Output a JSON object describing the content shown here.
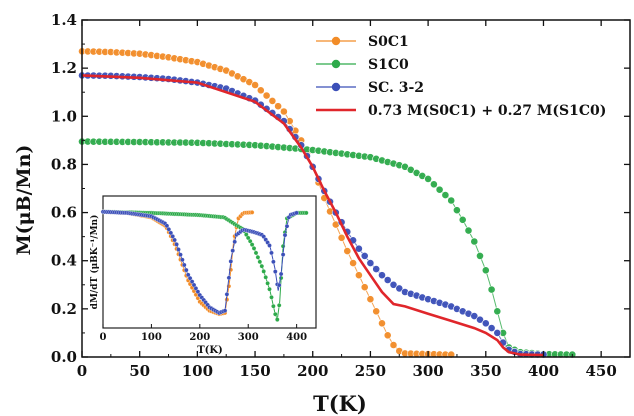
{
  "chart_data": {
    "type": "scatter",
    "xlabel": "T(K)",
    "ylabel": "M(μB/Mn)",
    "xlim": [
      0,
      475
    ],
    "ylim": [
      0,
      1.4
    ],
    "x_ticks": [
      "0",
      "50",
      "100",
      "150",
      "200",
      "250",
      "300",
      "350",
      "400",
      "450"
    ],
    "y_ticks": [
      "0.0",
      "0.2",
      "0.4",
      "0.6",
      "0.8",
      "1.0",
      "1.2",
      "1.4"
    ],
    "legend_position": "top-right",
    "colors": {
      "s0c1": "#F28C28",
      "s1c0": "#2DAA4A",
      "sc32": "#3B4FB8",
      "fit": "#E0262B"
    },
    "series": [
      {
        "name": "S0C1",
        "marker": "circle",
        "points": [
          [
            0,
            1.27
          ],
          [
            25,
            1.267
          ],
          [
            50,
            1.26
          ],
          [
            75,
            1.245
          ],
          [
            100,
            1.225
          ],
          [
            125,
            1.19
          ],
          [
            150,
            1.13
          ],
          [
            175,
            1.02
          ],
          [
            190,
            0.9
          ],
          [
            200,
            0.79
          ],
          [
            210,
            0.66
          ],
          [
            220,
            0.55
          ],
          [
            230,
            0.44
          ],
          [
            240,
            0.34
          ],
          [
            250,
            0.24
          ],
          [
            260,
            0.14
          ],
          [
            265,
            0.09
          ],
          [
            270,
            0.05
          ],
          [
            275,
            0.025
          ],
          [
            280,
            0.015
          ],
          [
            300,
            0.012
          ],
          [
            320,
            0.01
          ]
        ]
      },
      {
        "name": "S1C0",
        "marker": "circle",
        "points": [
          [
            0,
            0.895
          ],
          [
            50,
            0.893
          ],
          [
            100,
            0.89
          ],
          [
            150,
            0.88
          ],
          [
            200,
            0.86
          ],
          [
            250,
            0.83
          ],
          [
            280,
            0.79
          ],
          [
            300,
            0.74
          ],
          [
            320,
            0.65
          ],
          [
            330,
            0.57
          ],
          [
            340,
            0.48
          ],
          [
            350,
            0.36
          ],
          [
            355,
            0.28
          ],
          [
            360,
            0.19
          ],
          [
            365,
            0.1
          ],
          [
            370,
            0.04
          ],
          [
            380,
            0.02
          ],
          [
            400,
            0.012
          ],
          [
            425,
            0.01
          ]
        ]
      },
      {
        "name": "SC. 3-2",
        "marker": "circle",
        "points": [
          [
            0,
            1.17
          ],
          [
            25,
            1.168
          ],
          [
            50,
            1.163
          ],
          [
            75,
            1.155
          ],
          [
            100,
            1.14
          ],
          [
            125,
            1.115
          ],
          [
            150,
            1.065
          ],
          [
            175,
            0.98
          ],
          [
            190,
            0.88
          ],
          [
            200,
            0.79
          ],
          [
            210,
            0.69
          ],
          [
            220,
            0.6
          ],
          [
            230,
            0.52
          ],
          [
            240,
            0.45
          ],
          [
            250,
            0.39
          ],
          [
            260,
            0.34
          ],
          [
            270,
            0.3
          ],
          [
            280,
            0.27
          ],
          [
            300,
            0.24
          ],
          [
            320,
            0.21
          ],
          [
            340,
            0.17
          ],
          [
            350,
            0.14
          ],
          [
            360,
            0.1
          ],
          [
            365,
            0.06
          ],
          [
            370,
            0.03
          ],
          [
            380,
            0.012
          ],
          [
            400,
            0.01
          ]
        ]
      },
      {
        "name": "0.73 M(S0C1) + 0.27 M(S1C0)",
        "marker": "line",
        "points": [
          [
            0,
            1.17
          ],
          [
            50,
            1.16
          ],
          [
            100,
            1.14
          ],
          [
            150,
            1.06
          ],
          [
            175,
            0.97
          ],
          [
            190,
            0.87
          ],
          [
            200,
            0.79
          ],
          [
            210,
            0.69
          ],
          [
            220,
            0.6
          ],
          [
            230,
            0.5
          ],
          [
            240,
            0.41
          ],
          [
            250,
            0.34
          ],
          [
            260,
            0.27
          ],
          [
            270,
            0.22
          ],
          [
            280,
            0.21
          ],
          [
            300,
            0.18
          ],
          [
            320,
            0.15
          ],
          [
            340,
            0.12
          ],
          [
            350,
            0.1
          ],
          [
            360,
            0.07
          ],
          [
            365,
            0.04
          ],
          [
            370,
            0.02
          ],
          [
            380,
            0.01
          ],
          [
            400,
            0.008
          ]
        ]
      }
    ],
    "inset": {
      "ylabel": "dM/dT (μBK⁻¹/Mn)",
      "xlabel": "T(K)",
      "xlim": [
        0,
        440
      ],
      "x_ticks": [
        "0",
        "100",
        "200",
        "300",
        "400"
      ],
      "series": [
        {
          "name": "S0C1",
          "points": [
            [
              0,
              0.01
            ],
            [
              50,
              0.0
            ],
            [
              100,
              -0.04
            ],
            [
              130,
              -0.12
            ],
            [
              150,
              -0.3
            ],
            [
              175,
              -0.6
            ],
            [
              200,
              -0.8
            ],
            [
              220,
              -0.88
            ],
            [
              240,
              -0.91
            ],
            [
              252,
              -0.9
            ],
            [
              262,
              -0.6
            ],
            [
              270,
              -0.25
            ],
            [
              280,
              -0.05
            ],
            [
              290,
              0.0
            ],
            [
              310,
              0.005
            ]
          ]
        },
        {
          "name": "S1C0",
          "points": [
            [
              0,
              0.01
            ],
            [
              100,
              0.0
            ],
            [
              200,
              -0.02
            ],
            [
              250,
              -0.04
            ],
            [
              290,
              -0.15
            ],
            [
              310,
              -0.3
            ],
            [
              330,
              -0.5
            ],
            [
              345,
              -0.7
            ],
            [
              355,
              -0.9
            ],
            [
              360,
              -0.96
            ],
            [
              365,
              -0.8
            ],
            [
              372,
              -0.3
            ],
            [
              380,
              -0.05
            ],
            [
              400,
              0.0
            ],
            [
              420,
              0.0
            ]
          ]
        },
        {
          "name": "SC. 3-2",
          "points": [
            [
              0,
              0.01
            ],
            [
              50,
              0.0
            ],
            [
              100,
              -0.03
            ],
            [
              130,
              -0.1
            ],
            [
              150,
              -0.26
            ],
            [
              175,
              -0.55
            ],
            [
              200,
              -0.74
            ],
            [
              220,
              -0.85
            ],
            [
              240,
              -0.9
            ],
            [
              252,
              -0.88
            ],
            [
              265,
              -0.4
            ],
            [
              275,
              -0.2
            ],
            [
              290,
              -0.15
            ],
            [
              310,
              -0.17
            ],
            [
              330,
              -0.2
            ],
            [
              345,
              -0.3
            ],
            [
              355,
              -0.5
            ],
            [
              362,
              -0.7
            ],
            [
              368,
              -0.55
            ],
            [
              376,
              -0.2
            ],
            [
              385,
              -0.02
            ],
            [
              400,
              0.0
            ]
          ]
        }
      ]
    }
  }
}
